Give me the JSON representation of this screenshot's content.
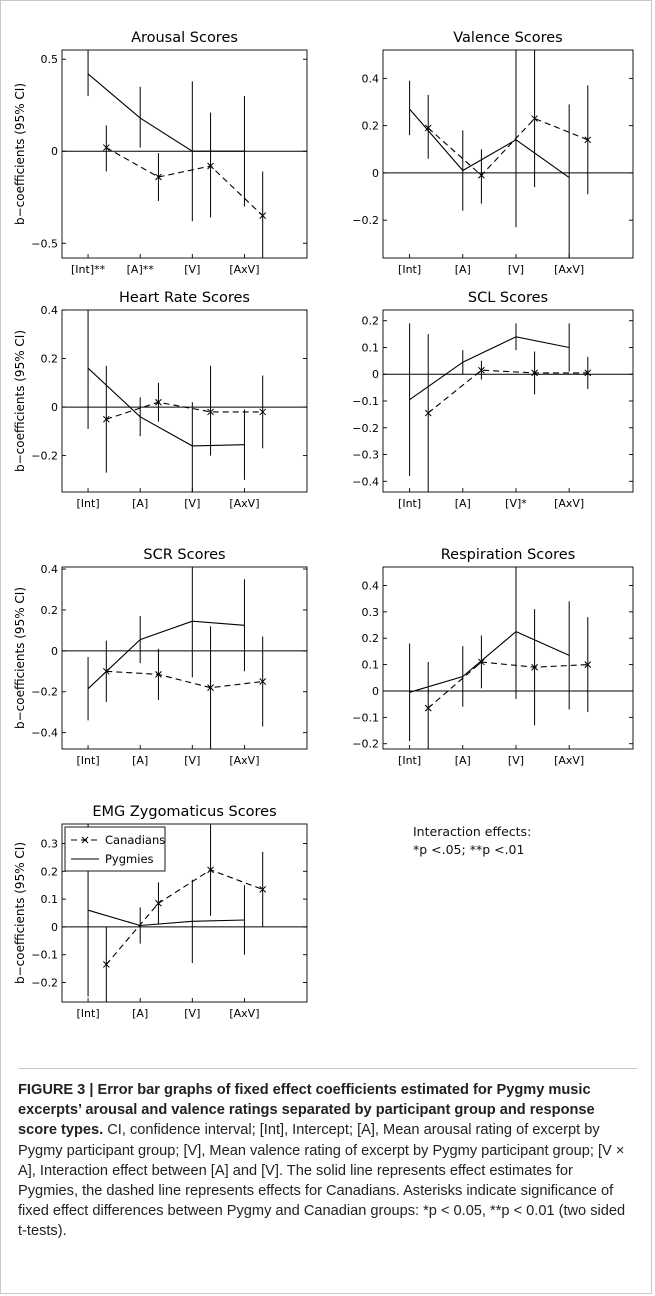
{
  "figure": {
    "note": {
      "line1": "Interaction effects:",
      "line2": "*p <.05; **p <.01"
    },
    "caption": {
      "bold": "FIGURE 3 | Error bar graphs of fixed effect coefficients estimated for Pygmy music excerpts’ arousal and valence ratings separated by participant group and response score types.",
      "body": " CI, confidence interval; [Int], Intercept; [A], Mean arousal rating of excerpt by Pygmy participant group; [V], Mean valence rating of excerpt by Pygmy participant group; [V × A], Interaction effect between [A] and [V]. The solid line represents effect estimates for Pygmies, the dashed line represents effects for Canadians. Asterisks indicate significance of fixed effect differences between Pygmy and Canadian groups: *p < 0.05, **p < 0.01 (two sided t-tests)."
    },
    "colors": {
      "line": "#000000",
      "background": "#ffffff",
      "border": "#c8c8c8"
    }
  },
  "chart_data": [
    {
      "type": "line",
      "title": "Arousal Scores",
      "ylabel": "b−coefficients (95% CI)",
      "categories": [
        "[Int]**",
        "[A]**",
        "[V]",
        "[AxV]"
      ],
      "ylim": [
        -0.58,
        0.55
      ],
      "yticks": [
        -0.5,
        0,
        0.5
      ],
      "series": [
        {
          "name": "Pygmies",
          "style": "solid",
          "x": [
            1,
            2,
            3,
            4
          ],
          "values": [
            0.42,
            0.18,
            0.0,
            0.0
          ],
          "lower": [
            0.3,
            0.02,
            -0.38,
            -0.3
          ],
          "upper": [
            0.55,
            0.35,
            0.38,
            0.3
          ]
        },
        {
          "name": "Canadians",
          "style": "dashed",
          "x": [
            1.35,
            2.35,
            3.35,
            4.35
          ],
          "values": [
            0.02,
            -0.14,
            -0.08,
            -0.35
          ],
          "lower": [
            -0.11,
            -0.27,
            -0.36,
            -0.58
          ],
          "upper": [
            0.14,
            -0.01,
            0.21,
            -0.11
          ]
        }
      ]
    },
    {
      "type": "line",
      "title": "Valence Scores",
      "categories": [
        "[Int]",
        "[A]",
        "[V]",
        "[AxV]"
      ],
      "ylim": [
        -0.36,
        0.52
      ],
      "yticks": [
        -0.2,
        0,
        0.2,
        0.4
      ],
      "series": [
        {
          "name": "Pygmies",
          "style": "solid",
          "x": [
            1,
            2,
            3,
            4
          ],
          "values": [
            0.27,
            0.01,
            0.14,
            -0.02
          ],
          "lower": [
            0.16,
            -0.16,
            -0.23,
            -0.36
          ],
          "upper": [
            0.39,
            0.18,
            0.52,
            0.29
          ]
        },
        {
          "name": "Canadians",
          "style": "dashed",
          "x": [
            1.35,
            2.35,
            3.35,
            4.35
          ],
          "values": [
            0.19,
            -0.01,
            0.23,
            0.14
          ],
          "lower": [
            0.06,
            -0.13,
            -0.06,
            -0.09
          ],
          "upper": [
            0.33,
            0.1,
            0.52,
            0.37
          ]
        }
      ]
    },
    {
      "type": "line",
      "title": "Heart Rate Scores",
      "ylabel": "b−coefficients (95% CI)",
      "categories": [
        "[Int]",
        "[A]",
        "[V]",
        "[AxV]"
      ],
      "ylim": [
        -0.35,
        0.4
      ],
      "yticks": [
        -0.2,
        0,
        0.2,
        0.4
      ],
      "series": [
        {
          "name": "Pygmies",
          "style": "solid",
          "x": [
            1,
            2,
            3,
            4
          ],
          "values": [
            0.16,
            -0.04,
            -0.16,
            -0.155
          ],
          "lower": [
            -0.09,
            -0.12,
            -0.35,
            -0.3
          ],
          "upper": [
            0.4,
            0.04,
            0.02,
            -0.01
          ]
        },
        {
          "name": "Canadians",
          "style": "dashed",
          "x": [
            1.35,
            2.35,
            3.35,
            4.35
          ],
          "values": [
            -0.05,
            0.02,
            -0.02,
            -0.02
          ],
          "lower": [
            -0.27,
            -0.06,
            -0.2,
            -0.17
          ],
          "upper": [
            0.17,
            0.1,
            0.17,
            0.13
          ]
        }
      ]
    },
    {
      "type": "line",
      "title": "SCL Scores",
      "categories": [
        "[Int]",
        "[A]",
        "[V]*",
        "[AxV]"
      ],
      "ylim": [
        -0.44,
        0.24
      ],
      "yticks": [
        -0.4,
        -0.3,
        -0.2,
        -0.1,
        0,
        0.1,
        0.2
      ],
      "series": [
        {
          "name": "Pygmies",
          "style": "solid",
          "x": [
            1,
            2,
            3,
            4
          ],
          "values": [
            -0.095,
            0.045,
            0.14,
            0.1
          ],
          "lower": [
            -0.38,
            0.0,
            0.09,
            0.01
          ],
          "upper": [
            0.19,
            0.09,
            0.19,
            0.19
          ]
        },
        {
          "name": "Canadians",
          "style": "dashed",
          "x": [
            1.35,
            2.35,
            3.35,
            4.35
          ],
          "values": [
            -0.145,
            0.015,
            0.005,
            0.005
          ],
          "lower": [
            -0.44,
            -0.02,
            -0.075,
            -0.055
          ],
          "upper": [
            0.15,
            0.05,
            0.085,
            0.065
          ]
        }
      ]
    },
    {
      "type": "line",
      "title": "SCR Scores",
      "ylabel": "b−coefficients (95% CI)",
      "categories": [
        "[Int]",
        "[A]",
        "[V]",
        "[AxV]"
      ],
      "ylim": [
        -0.48,
        0.41
      ],
      "yticks": [
        -0.4,
        -0.2,
        0,
        0.2,
        0.4
      ],
      "series": [
        {
          "name": "Pygmies",
          "style": "solid",
          "x": [
            1,
            2,
            3,
            4
          ],
          "values": [
            -0.185,
            0.055,
            0.145,
            0.125
          ],
          "lower": [
            -0.34,
            -0.06,
            -0.13,
            -0.1
          ],
          "upper": [
            -0.03,
            0.17,
            0.41,
            0.35
          ]
        },
        {
          "name": "Canadians",
          "style": "dashed",
          "x": [
            1.35,
            2.35,
            3.35,
            4.35
          ],
          "values": [
            -0.1,
            -0.115,
            -0.18,
            -0.15
          ],
          "lower": [
            -0.25,
            -0.24,
            -0.48,
            -0.37
          ],
          "upper": [
            0.05,
            0.01,
            0.12,
            0.07
          ]
        }
      ]
    },
    {
      "type": "line",
      "title": "Respiration Scores",
      "categories": [
        "[Int]",
        "[A]",
        "[V]",
        "[AxV]"
      ],
      "ylim": [
        -0.22,
        0.47
      ],
      "yticks": [
        -0.2,
        -0.1,
        0,
        0.1,
        0.2,
        0.3,
        0.4
      ],
      "series": [
        {
          "name": "Pygmies",
          "style": "solid",
          "x": [
            1,
            2,
            3,
            4
          ],
          "values": [
            -0.005,
            0.055,
            0.225,
            0.135
          ],
          "lower": [
            -0.19,
            -0.06,
            -0.03,
            -0.07
          ],
          "upper": [
            0.18,
            0.17,
            0.47,
            0.34
          ]
        },
        {
          "name": "Canadians",
          "style": "dashed",
          "x": [
            1.35,
            2.35,
            3.35,
            4.35
          ],
          "values": [
            -0.065,
            0.11,
            0.09,
            0.1
          ],
          "lower": [
            -0.22,
            0.01,
            -0.13,
            -0.08
          ],
          "upper": [
            0.11,
            0.21,
            0.31,
            0.28
          ]
        }
      ]
    },
    {
      "type": "line",
      "title": "EMG Zygomaticus Scores",
      "ylabel": "b−coefficients (95% CI)",
      "categories": [
        "[Int]",
        "[A]",
        "[V]",
        "[AxV]"
      ],
      "ylim": [
        -0.27,
        0.37
      ],
      "yticks": [
        -0.2,
        -0.1,
        0,
        0.1,
        0.2,
        0.3
      ],
      "legend": {
        "placement": "top-left",
        "entries": [
          "Canadians",
          "Pygmies"
        ]
      },
      "series": [
        {
          "name": "Pygmies",
          "style": "solid",
          "x": [
            1,
            2,
            3,
            4
          ],
          "values": [
            0.06,
            0.005,
            0.02,
            0.025
          ],
          "lower": [
            -0.25,
            -0.06,
            -0.13,
            -0.1
          ],
          "upper": [
            0.37,
            0.07,
            0.17,
            0.15
          ]
        },
        {
          "name": "Canadians",
          "style": "dashed",
          "x": [
            1.35,
            2.35,
            3.35,
            4.35
          ],
          "values": [
            -0.135,
            0.085,
            0.205,
            0.135
          ],
          "lower": [
            -0.27,
            0.01,
            0.04,
            0.0
          ],
          "upper": [
            0.0,
            0.16,
            0.37,
            0.27
          ]
        }
      ]
    }
  ]
}
